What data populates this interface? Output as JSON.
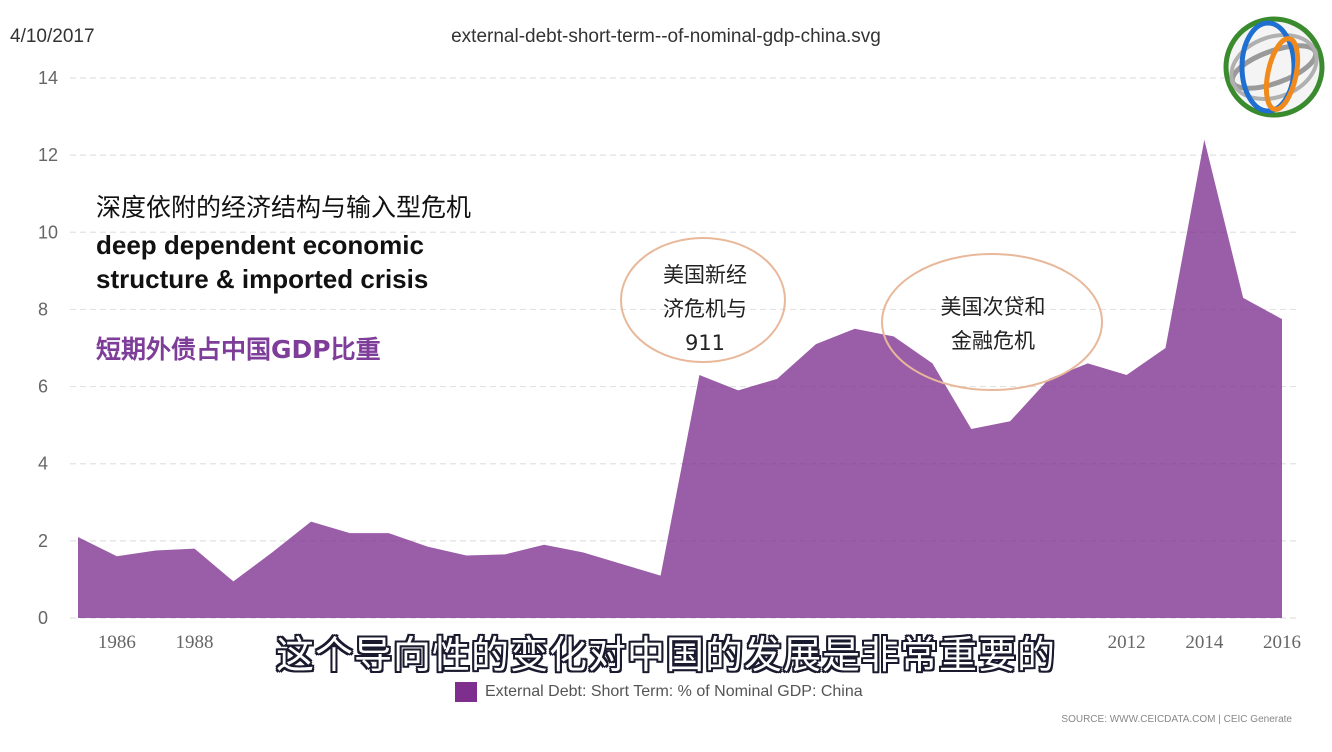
{
  "header": {
    "date": "4/10/2017",
    "filename": "external-debt-short-term--of-nominal-gdp-china.svg"
  },
  "annotations": {
    "headline_cn": "深度依附的经济结构与输入型危机",
    "headline_en_1": "deep dependent economic",
    "headline_en_2": "structure & imported crisis",
    "subhead_cn": "短期外债占中国GDP比重",
    "callout_1_line1": "美国新经",
    "callout_1_line2": "济危机与",
    "callout_1_line3": "911",
    "callout_2_line1": "美国次贷和",
    "callout_2_line2": "金融危机"
  },
  "subtitle": "这个导向性的变化对中国的发展是非常重要的",
  "legend": {
    "label": "External Debt: Short Term: % of Nominal GDP: China",
    "color": "#7e2f8e"
  },
  "source": "SOURCE: WWW.CEICDATA.COM | CEIC Generate",
  "logo": {
    "icon": "globe-logo-icon"
  },
  "chart_data": {
    "type": "area",
    "title": "",
    "xlabel": "",
    "ylabel": "",
    "x": [
      1985,
      1986,
      1987,
      1988,
      1989,
      1990,
      1991,
      1992,
      1993,
      1994,
      1995,
      1996,
      1997,
      1998,
      1999,
      2000,
      2001,
      2002,
      2003,
      2004,
      2005,
      2006,
      2007,
      2008,
      2009,
      2010,
      2011,
      2012,
      2013,
      2014,
      2015,
      2016
    ],
    "series": [
      {
        "name": "External Debt: Short Term: % of Nominal GDP: China",
        "values": [
          2.1,
          1.6,
          1.75,
          1.8,
          0.95,
          1.7,
          2.5,
          2.2,
          2.2,
          1.85,
          1.62,
          1.65,
          1.9,
          1.7,
          1.4,
          1.1,
          6.3,
          5.9,
          6.2,
          7.1,
          7.5,
          7.3,
          6.6,
          4.9,
          5.1,
          6.2,
          6.6,
          6.3,
          7.0,
          12.4,
          8.3,
          7.75
        ],
        "color": "#7e2f8e"
      }
    ],
    "x_tick_labels": [
      "1986",
      "1988",
      "2012",
      "2014",
      "2016"
    ],
    "x_ticks": [
      1986,
      1988,
      2012,
      2014,
      2016
    ],
    "y_ticks": [
      0,
      2,
      4,
      6,
      8,
      10,
      12,
      14
    ],
    "ylim": [
      0,
      14
    ],
    "xlim": [
      1985,
      2016
    ],
    "grid": true,
    "legend_position": "bottom"
  }
}
